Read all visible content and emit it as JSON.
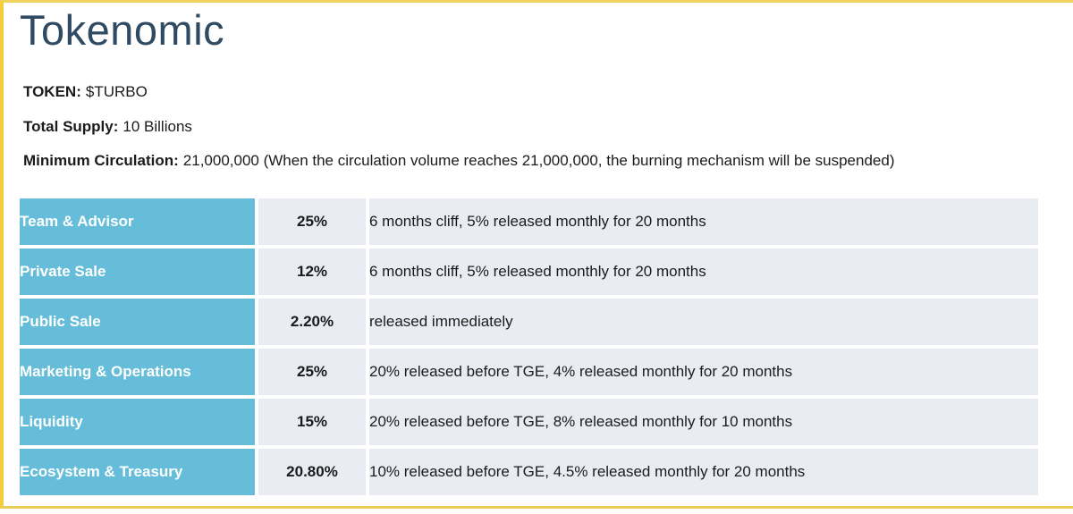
{
  "page": {
    "title": "Tokenomic"
  },
  "meta": {
    "token_label": "TOKEN:",
    "token_value": "$TURBO",
    "supply_label": "Total Supply:",
    "supply_value": "10 Billions",
    "circulation_label": "Minimum Circulation:",
    "circulation_value": "21,000,000 (When the circulation volume reaches 21,000,000, the burning mechanism will be suspended)"
  },
  "colors": {
    "frame_yellow": "#F3CE3B",
    "allocation_cell_teal": "#66BDD9",
    "data_cell_light": "#E9EDF3",
    "title_dark_slate": "#2F4B63"
  },
  "table": {
    "rows": [
      {
        "allocation": "Team & Advisor",
        "percent": "25%",
        "vesting": "6 months cliff, 5% released monthly for 20 months"
      },
      {
        "allocation": "Private Sale",
        "percent": "12%",
        "vesting": "6 months cliff, 5% released monthly for 20 months"
      },
      {
        "allocation": "Public Sale",
        "percent": "2.20%",
        "vesting": "released immediately"
      },
      {
        "allocation": "Marketing & Operations",
        "percent": "25%",
        "vesting": "20% released before TGE, 4% released monthly for 20 months"
      },
      {
        "allocation": "Liquidity",
        "percent": "15%",
        "vesting": "20% released before TGE, 8% released monthly for 10 months"
      },
      {
        "allocation": "Ecosystem & Treasury",
        "percent": "20.80%",
        "vesting": "10% released before TGE, 4.5% released monthly for 20 months"
      }
    ]
  }
}
